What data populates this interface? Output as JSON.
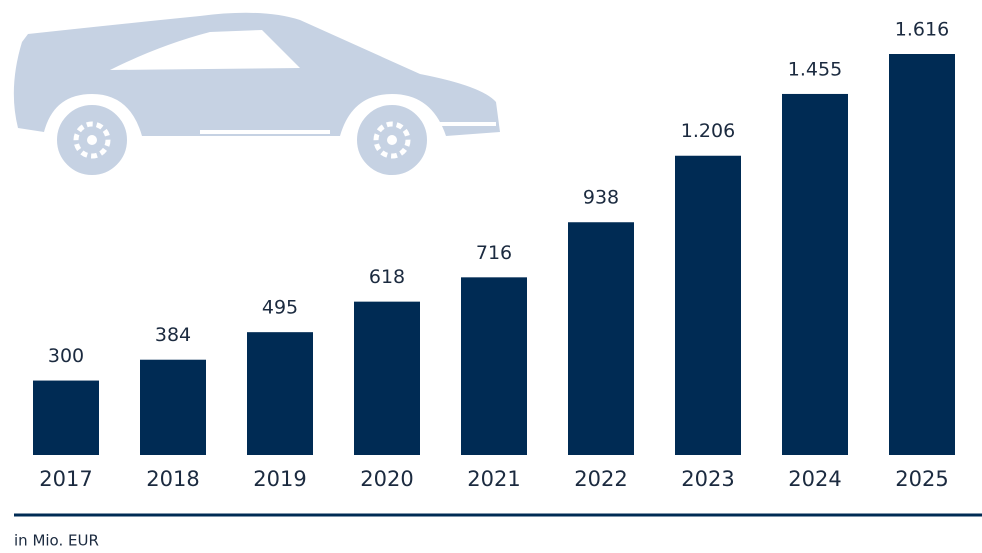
{
  "chart_data": {
    "type": "bar",
    "categories": [
      "2017",
      "2018",
      "2019",
      "2020",
      "2021",
      "2022",
      "2023",
      "2024",
      "2025"
    ],
    "values": [
      300,
      384,
      495,
      618,
      716,
      938,
      1206,
      1455,
      1616
    ],
    "value_labels": [
      "300",
      "384",
      "495",
      "618",
      "716",
      "938",
      "1.206",
      "1.455",
      "1.616"
    ],
    "color": "#002b54",
    "unit_note": "in Mio. EUR"
  }
}
